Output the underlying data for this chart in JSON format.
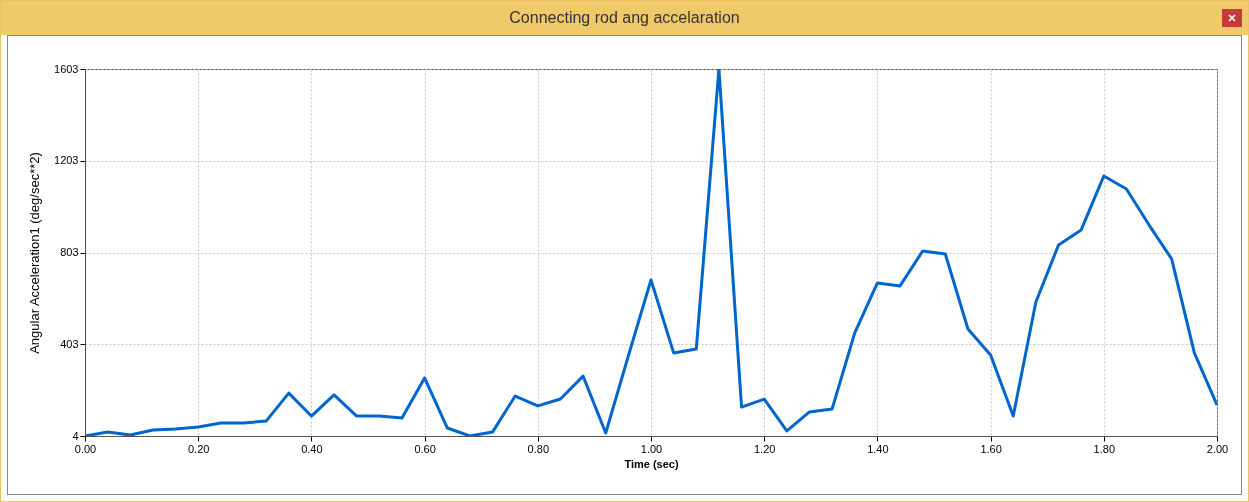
{
  "chart_data": {
    "type": "line",
    "title": "Connecting rod ang accelaration",
    "xlabel": "Time (sec)",
    "ylabel": "Angular Acceleration1 (deg/sec**2)",
    "x": [
      0,
      0.04,
      0.08,
      0.12,
      0.16,
      0.2,
      0.24,
      0.28,
      0.32,
      0.36,
      0.4,
      0.44,
      0.48,
      0.52,
      0.56,
      0.6,
      0.64,
      0.68,
      0.72,
      0.76,
      0.8,
      0.84,
      0.88,
      0.92,
      0.96,
      1,
      1.04,
      1.08,
      1.12,
      1.16,
      1.2,
      1.24,
      1.28,
      1.32,
      1.36,
      1.4,
      1.44,
      1.48,
      1.52,
      1.56,
      1.6,
      1.64,
      1.68,
      1.72,
      1.76,
      1.8,
      1.84,
      1.88,
      1.92,
      1.96,
      2
    ],
    "series": [
      {
        "color": "#0066cc",
        "values": [
          4,
          21,
          8,
          30,
          35,
          43,
          61,
          61,
          69,
          191,
          91,
          183,
          91,
          91,
          82,
          257,
          39,
          4,
          21,
          178,
          135,
          165,
          265,
          17,
          353,
          684,
          366,
          383,
          1603,
          130,
          165,
          26,
          109,
          122,
          453,
          671,
          658,
          810,
          797,
          470,
          357,
          91,
          588,
          836,
          902,
          1137,
          1080,
          923,
          775,
          366,
          139
        ]
      }
    ],
    "xlim": [
      0,
      2
    ],
    "ylim": [
      4,
      1603
    ],
    "xticks": [
      {
        "value": 0,
        "label": "0.00"
      },
      {
        "value": 0.2,
        "label": "0.20"
      },
      {
        "value": 0.4,
        "label": "0.40"
      },
      {
        "value": 0.6,
        "label": "0.60"
      },
      {
        "value": 0.8,
        "label": "0.80"
      },
      {
        "value": 1,
        "label": "1.00"
      },
      {
        "value": 1.2,
        "label": "1.20"
      },
      {
        "value": 1.4,
        "label": "1.40"
      },
      {
        "value": 1.6,
        "label": "1.60"
      },
      {
        "value": 1.8,
        "label": "1.80"
      },
      {
        "value": 2,
        "label": "2.00"
      }
    ],
    "yticks": [
      4,
      403,
      803,
      1203,
      1603
    ],
    "grid": true,
    "marker": "none",
    "line_style": "solid"
  }
}
